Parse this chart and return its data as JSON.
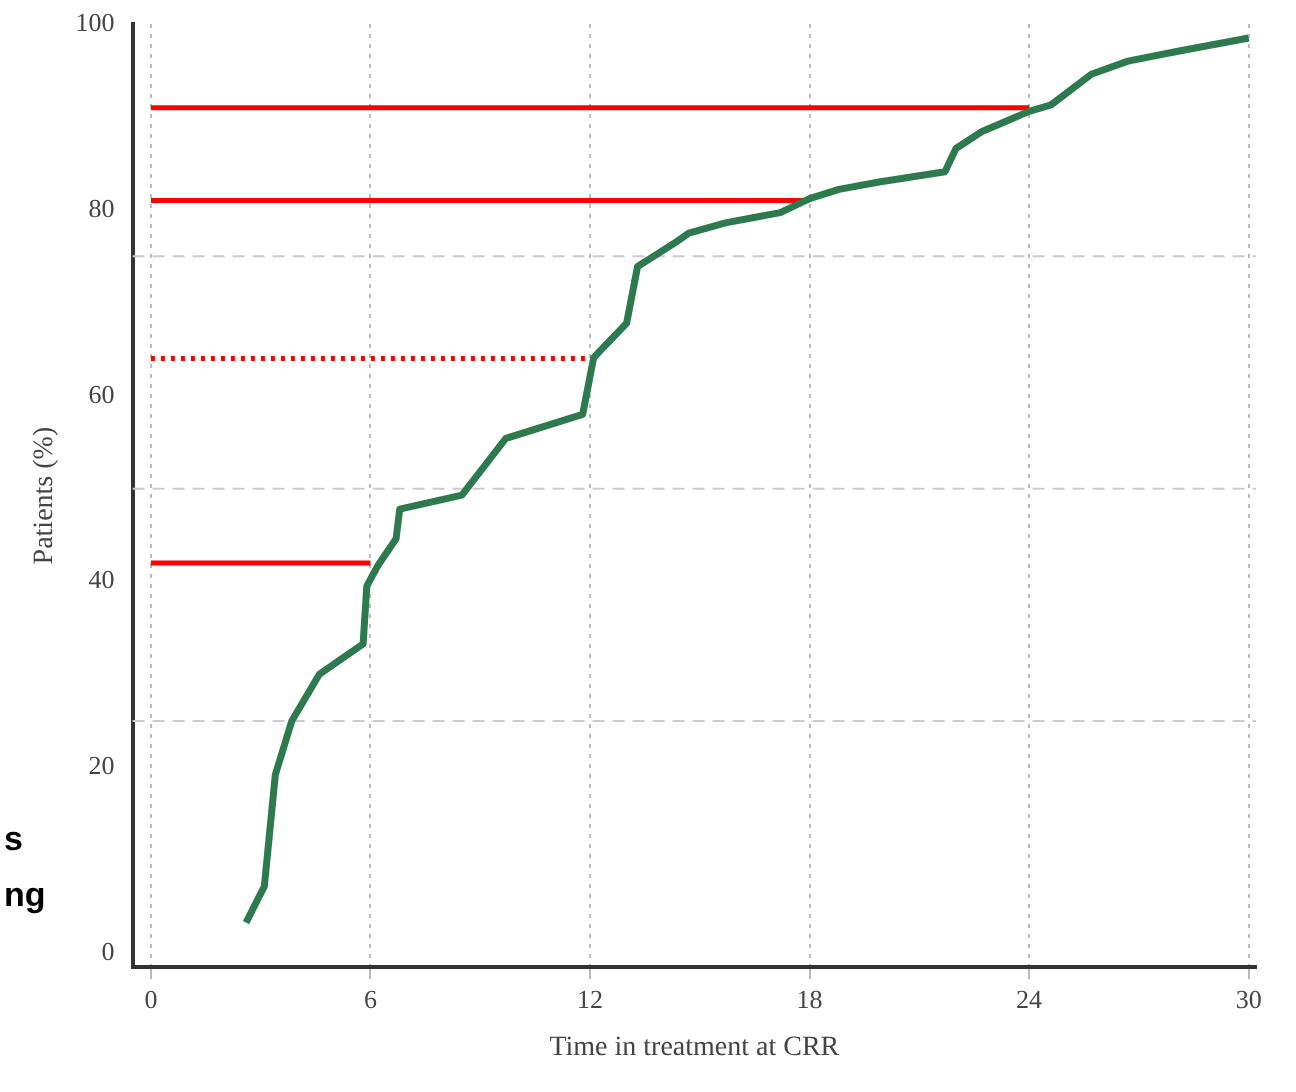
{
  "chart_data": {
    "type": "line",
    "xlabel": "Time in treatment at CRR",
    "ylabel": "Patients (%)",
    "xlim": [
      -0.5,
      30.2
    ],
    "xticks": [
      0,
      6,
      12,
      18,
      24,
      30
    ],
    "ylim": [
      -1.5,
      100
    ],
    "yticks": [
      0,
      20,
      40,
      60,
      80,
      100
    ],
    "grid": "x",
    "legend": false,
    "marker": "none",
    "ref_lines": [
      {
        "axis": "y",
        "value": 25,
        "color": "#cccccc",
        "line_style": "dashed"
      },
      {
        "axis": "y",
        "value": 50,
        "color": "#cccccc",
        "line_style": "dashed"
      },
      {
        "axis": "y",
        "value": 75,
        "color": "#cccccc",
        "line_style": "dashed"
      }
    ],
    "series": [
      {
        "color": "#2d7a4f",
        "x": [
          2.6,
          3.1,
          3.4,
          3.85,
          4.6,
          5.8,
          5.9,
          6.2,
          6.7,
          6.8,
          8.5,
          9.7,
          11.8,
          12.1,
          13.0,
          13.3,
          14.3,
          14.7,
          15.7,
          17.2,
          18.0,
          18.8,
          19.9,
          21.7,
          22.0,
          22.7,
          24.0,
          24.6,
          25.7,
          26.7,
          28.1,
          30
        ],
        "values": [
          3.3,
          7.2,
          19.2,
          25,
          30,
          33.3,
          39.5,
          41.7,
          44.6,
          47.8,
          49.3,
          55.4,
          58,
          64.1,
          67.8,
          73.9,
          76.4,
          77.5,
          78.6,
          79.7,
          81.2,
          82.2,
          83.0,
          84.1,
          86.6,
          88.4,
          90.6,
          91.3,
          94.6,
          96.0,
          97.1,
          98.5
        ]
      },
      {
        "color": "#ff0000",
        "x": [
          0,
          24
        ],
        "values": [
          91,
          91
        ]
      },
      {
        "color": "#ff0000",
        "x": [
          0,
          18
        ],
        "values": [
          81,
          81
        ]
      },
      {
        "color": "#ff0000",
        "x": [
          0,
          12
        ],
        "values": [
          64,
          64
        ],
        "line_style": "dotted"
      },
      {
        "color": "#ff0000",
        "x": [
          0,
          6
        ],
        "values": [
          42,
          42
        ]
      }
    ],
    "annotations": [
      "s",
      "ng"
    ]
  }
}
